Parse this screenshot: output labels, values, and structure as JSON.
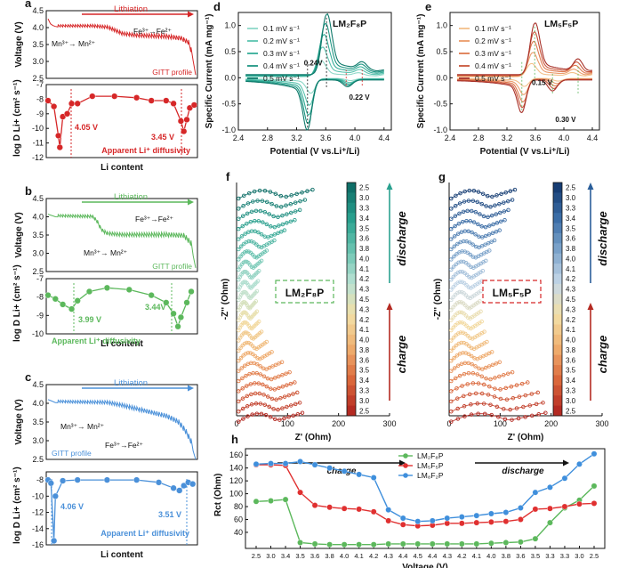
{
  "panels": {
    "a": {
      "letter": "a",
      "arrow_label": "Lithiation",
      "fe_label": "Fe³⁺→Fe²⁺",
      "mn_label": "Mn³⁺→ Mn²⁺",
      "profile_label": "GITT profile",
      "diff_label": "Apparent Li⁺ diffusivity",
      "v1": "4.05 V",
      "v2": "3.45 V",
      "xlabel": "Li content",
      "ylabel_v": "Voltage (V)",
      "ylabel_d": "log D",
      "ylabel_d_sub": "Li",
      "ylabel_d_sup": "+",
      "ylabel_d_unit": " (cm² s⁻¹)"
    },
    "b": {
      "letter": "b",
      "arrow_label": "Lithiation",
      "fe_label": "Fe³⁺→Fe²⁺",
      "mn_label": "Mn³⁺→ Mn²⁺",
      "profile_label": "GITT profile",
      "diff_label": "Apparent Li⁺ diffusivity",
      "v1": "3.99 V",
      "v2": "3.44V",
      "xlabel": "Li content",
      "ylabel_v": "Voltage (V)",
      "ylabel_d": "log D",
      "ylabel_d_sub": "Li",
      "ylabel_d_sup": "+",
      "ylabel_d_unit": " (cm² s⁻¹)"
    },
    "c": {
      "letter": "c",
      "arrow_label": "Lithiation",
      "fe_label": "Fe³⁺→Fe²⁺",
      "mn_label": "Mn³⁺→ Mn²⁺",
      "profile_label": "GITT profile",
      "diff_label": "Apparent Li⁺ diffusivity",
      "v1": "4.06 V",
      "v2": "3.51 V",
      "xlabel": "Li content",
      "ylabel_v": "Voltage (V)",
      "ylabel_d": "log D",
      "ylabel_d_sub": "Li",
      "ylabel_d_sup": "+",
      "ylabel_d_unit": " (cm² s⁻¹)"
    },
    "d": {
      "letter": "d",
      "title": "LM₂F₈P",
      "peak_sep_1": "0.24V",
      "peak_sep_2": "0.22 V",
      "xlabel": "Potential (V vs.Li⁺/Li)",
      "ylabel": "Specific Current (mA mg⁻¹)"
    },
    "e": {
      "letter": "e",
      "title": "LM₅F₅P",
      "peak_sep_1": "0.15 V",
      "peak_sep_2": "0.30 V",
      "xlabel": "Potential (V vs.Li⁺/Li)",
      "ylabel": "Specific Current (mA mg⁻¹)"
    },
    "f": {
      "letter": "f",
      "label": "LM₂F₈P",
      "xlabel": "Z' (Ohm)",
      "ylabel": "-Z'' (Ohm)",
      "discharge": "discharge",
      "charge": "charge"
    },
    "g": {
      "letter": "g",
      "label": "LM₅F₅P",
      "xlabel": "Z' (Ohm)",
      "ylabel": "-Z'' (Ohm)",
      "discharge": "discharge",
      "charge": "charge"
    },
    "h": {
      "letter": "h",
      "charge": "charge",
      "discharge": "discharge",
      "xlabel": "Voltage (V)",
      "ylabel": "R",
      "ylabel_sub": "ct",
      "ylabel_unit": " (Ohm)"
    }
  },
  "colors": {
    "red": "#d62728",
    "green": "#5cb85c",
    "blue": "#4a90d9",
    "teal": "#20a090",
    "orange": "#e07030"
  },
  "chart_data": [
    {
      "id": "a",
      "type": "line",
      "voltage_axis": {
        "ylim": [
          2.5,
          4.5
        ],
        "ticks": [
          4.5,
          4.0,
          3.5,
          3.0,
          2.5
        ]
      },
      "diffusivity_axis": {
        "ylim": [
          -12,
          -7
        ],
        "ticks": [
          -7,
          -8,
          -9,
          -10,
          -11,
          -12
        ]
      },
      "voltage_profile": [
        [
          0,
          4.26
        ],
        [
          0.02,
          4.08
        ],
        [
          0.06,
          4.02
        ],
        [
          0.3,
          4.01
        ],
        [
          0.4,
          3.97
        ],
        [
          0.45,
          3.88
        ],
        [
          0.5,
          3.78
        ],
        [
          0.56,
          3.74
        ],
        [
          0.6,
          3.72
        ],
        [
          0.8,
          3.68
        ],
        [
          0.9,
          3.62
        ],
        [
          0.95,
          3.5
        ],
        [
          0.98,
          3.1
        ],
        [
          1.0,
          2.6
        ]
      ],
      "diffusivity": [
        [
          0,
          -8.1
        ],
        [
          0.04,
          -8.5
        ],
        [
          0.07,
          -10.5
        ],
        [
          0.08,
          -11.3
        ],
        [
          0.1,
          -9.2
        ],
        [
          0.13,
          -9.0
        ],
        [
          0.16,
          -8.3
        ],
        [
          0.2,
          -8.3
        ],
        [
          0.3,
          -7.8
        ],
        [
          0.45,
          -7.8
        ],
        [
          0.6,
          -7.9
        ],
        [
          0.7,
          -8.1
        ],
        [
          0.8,
          -8.1
        ],
        [
          0.85,
          -8.3
        ],
        [
          0.9,
          -9.5
        ],
        [
          0.92,
          -10.2
        ],
        [
          0.94,
          -9.4
        ],
        [
          0.96,
          -8.6
        ],
        [
          0.99,
          -8.4
        ]
      ]
    },
    {
      "id": "b",
      "type": "line",
      "voltage_axis": {
        "ylim": [
          2.5,
          4.5
        ],
        "ticks": [
          4.5,
          4.0,
          3.5,
          3.0,
          2.5
        ]
      },
      "diffusivity_axis": {
        "ylim": [
          -10,
          -7
        ],
        "ticks": [
          -7,
          -8,
          -9,
          -10
        ]
      },
      "voltage_profile": [
        [
          0,
          4.07
        ],
        [
          0.05,
          4.0
        ],
        [
          0.2,
          3.98
        ],
        [
          0.3,
          3.97
        ],
        [
          0.33,
          3.85
        ],
        [
          0.36,
          3.6
        ],
        [
          0.4,
          3.5
        ],
        [
          0.5,
          3.46
        ],
        [
          0.8,
          3.45
        ],
        [
          0.92,
          3.42
        ],
        [
          0.97,
          3.2
        ],
        [
          1.0,
          2.6
        ]
      ],
      "diffusivity": [
        [
          0,
          -7.9
        ],
        [
          0.05,
          -8.1
        ],
        [
          0.1,
          -8.4
        ],
        [
          0.16,
          -8.65
        ],
        [
          0.2,
          -8.2
        ],
        [
          0.28,
          -7.7
        ],
        [
          0.4,
          -7.5
        ],
        [
          0.55,
          -7.6
        ],
        [
          0.7,
          -7.9
        ],
        [
          0.8,
          -8.3
        ],
        [
          0.85,
          -8.9
        ],
        [
          0.88,
          -9.6
        ],
        [
          0.9,
          -9.1
        ],
        [
          0.94,
          -8.3
        ],
        [
          0.97,
          -7.7
        ]
      ]
    },
    {
      "id": "c",
      "type": "line",
      "voltage_axis": {
        "ylim": [
          2.5,
          4.5
        ],
        "ticks": [
          4.5,
          4.0,
          3.5,
          3.0,
          2.5
        ]
      },
      "diffusivity_axis": {
        "ylim": [
          -16,
          -7
        ],
        "ticks": [
          -8,
          -10,
          -12,
          -14,
          -16
        ]
      },
      "voltage_profile": [
        [
          0,
          4.1
        ],
        [
          0.05,
          4.02
        ],
        [
          0.2,
          4.0
        ],
        [
          0.4,
          3.98
        ],
        [
          0.5,
          3.9
        ],
        [
          0.6,
          3.8
        ],
        [
          0.7,
          3.7
        ],
        [
          0.8,
          3.6
        ],
        [
          0.88,
          3.45
        ],
        [
          0.93,
          3.2
        ],
        [
          0.97,
          2.9
        ],
        [
          1.0,
          2.5
        ]
      ],
      "diffusivity": [
        [
          0,
          -8.0
        ],
        [
          0.02,
          -8.4
        ],
        [
          0.04,
          -15.5
        ],
        [
          0.05,
          -10.0
        ],
        [
          0.1,
          -8.1
        ],
        [
          0.2,
          -8.0
        ],
        [
          0.4,
          -8.0
        ],
        [
          0.6,
          -8.0
        ],
        [
          0.75,
          -8.3
        ],
        [
          0.85,
          -9.0
        ],
        [
          0.89,
          -9.3
        ],
        [
          0.92,
          -8.7
        ],
        [
          0.95,
          -8.3
        ],
        [
          0.98,
          -8.5
        ]
      ]
    },
    {
      "id": "d",
      "type": "line",
      "xlim": [
        2.4,
        4.5
      ],
      "ylim": [
        -1.0,
        1.25
      ],
      "x_ticks": [
        2.4,
        2.8,
        3.2,
        3.6,
        4.0,
        4.4
      ],
      "y_ticks": [
        -1.0,
        -0.5,
        0.0,
        0.5,
        1.0
      ],
      "series": [
        {
          "name": "0.1 mV s⁻¹",
          "color": "#8fd8c8",
          "ox_peak": [
            3.53,
            0.3
          ],
          "red_peak": [
            3.4,
            -0.28
          ],
          "ox_peak2": [
            4.05,
            0.05
          ],
          "red_peak2": [
            3.94,
            -0.04
          ]
        },
        {
          "name": "0.2 mV s⁻¹",
          "color": "#5cc4b0",
          "ox_peak": [
            3.55,
            0.55
          ],
          "red_peak": [
            3.38,
            -0.5
          ],
          "ox_peak2": [
            4.07,
            0.08
          ],
          "red_peak2": [
            3.93,
            -0.07
          ]
        },
        {
          "name": "0.3 mV s⁻¹",
          "color": "#35ad98",
          "ox_peak": [
            3.57,
            0.78
          ],
          "red_peak": [
            3.37,
            -0.68
          ],
          "ox_peak2": [
            4.08,
            0.1
          ],
          "red_peak2": [
            3.92,
            -0.09
          ]
        },
        {
          "name": "0.4 mV s⁻¹",
          "color": "#1f9683",
          "ox_peak": [
            3.59,
            0.98
          ],
          "red_peak": [
            3.36,
            -0.83
          ],
          "ox_peak2": [
            4.09,
            0.12
          ],
          "red_peak2": [
            3.91,
            -0.11
          ]
        },
        {
          "name": "0.5 mV s⁻¹",
          "color": "#0f7a6b",
          "ox_peak": [
            3.61,
            1.15
          ],
          "red_peak": [
            3.35,
            -0.95
          ],
          "ox_peak2": [
            4.1,
            0.14
          ],
          "red_peak2": [
            3.9,
            -0.13
          ]
        }
      ]
    },
    {
      "id": "e",
      "type": "line",
      "xlim": [
        2.4,
        4.5
      ],
      "ylim": [
        -1.0,
        1.25
      ],
      "x_ticks": [
        2.4,
        2.8,
        3.2,
        3.6,
        4.0,
        4.4
      ],
      "y_ticks": [
        -1.0,
        -0.5,
        0.0,
        0.5,
        1.0
      ],
      "series": [
        {
          "name": "0.1 mV s⁻¹",
          "color": "#f3c08a",
          "ox_peak": [
            3.54,
            0.25
          ],
          "red_peak": [
            3.45,
            -0.15
          ],
          "ox_peak2": [
            4.12,
            0.06
          ],
          "red_peak2": [
            3.92,
            -0.05
          ]
        },
        {
          "name": "0.2 mV s⁻¹",
          "color": "#eb9b6a",
          "ox_peak": [
            3.56,
            0.45
          ],
          "red_peak": [
            3.44,
            -0.3
          ],
          "ox_peak2": [
            4.14,
            0.1
          ],
          "red_peak2": [
            3.9,
            -0.09
          ]
        },
        {
          "name": "0.3 mV s⁻¹",
          "color": "#de7a4f",
          "ox_peak": [
            3.57,
            0.65
          ],
          "red_peak": [
            3.43,
            -0.43
          ],
          "ox_peak2": [
            4.16,
            0.15
          ],
          "red_peak2": [
            3.88,
            -0.13
          ]
        },
        {
          "name": "0.4 mV s⁻¹",
          "color": "#c9553a",
          "ox_peak": [
            3.58,
            0.82
          ],
          "red_peak": [
            3.42,
            -0.53
          ],
          "ox_peak2": [
            4.18,
            0.19
          ],
          "red_peak2": [
            3.86,
            -0.17
          ]
        },
        {
          "name": "0.5 mV s⁻¹",
          "color": "#a8322a",
          "ox_peak": [
            3.59,
            0.98
          ],
          "red_peak": [
            3.41,
            -0.62
          ],
          "ox_peak2": [
            4.2,
            0.23
          ],
          "red_peak2": [
            3.84,
            -0.21
          ]
        }
      ]
    },
    {
      "id": "f",
      "type": "scatter",
      "x_ticks": [
        0,
        100,
        200,
        300
      ],
      "colorbar_labels": [
        "2.5",
        "3.0",
        "3.3",
        "3.4",
        "3.5",
        "3.6",
        "3.8",
        "4.0",
        "4.1",
        "4.2",
        "4.3",
        "4.5",
        "4.3",
        "4.2",
        "4.1",
        "4.0",
        "3.8",
        "3.6",
        "3.5",
        "3.4",
        "3.3",
        "3.0",
        "2.5"
      ],
      "curve_extent_ohm": [
        145,
        130,
        120,
        110,
        90,
        70,
        55,
        45,
        40,
        38,
        36,
        34,
        36,
        40,
        45,
        55,
        65,
        85,
        100,
        110,
        115,
        120,
        125
      ]
    },
    {
      "id": "g",
      "type": "scatter",
      "x_ticks": [
        0,
        100,
        200,
        300
      ],
      "colorbar_labels": [
        "2.5",
        "3.0",
        "3.3",
        "3.4",
        "3.5",
        "3.6",
        "3.8",
        "4.0",
        "4.1",
        "4.2",
        "4.3",
        "4.5",
        "4.3",
        "4.2",
        "4.1",
        "4.0",
        "3.8",
        "3.6",
        "3.5",
        "3.4",
        "3.3",
        "3.0",
        "2.5"
      ],
      "curve_extent_ohm": [
        125,
        120,
        112,
        105,
        95,
        85,
        75,
        68,
        62,
        60,
        58,
        56,
        58,
        60,
        65,
        70,
        80,
        95,
        120,
        150,
        170,
        180,
        185
      ]
    },
    {
      "id": "h",
      "type": "line",
      "categories": [
        "2.5",
        "3.0",
        "3.4",
        "3.5",
        "3.6",
        "3.8",
        "4.0",
        "4.1",
        "4.2",
        "4.3",
        "4.4",
        "4.5",
        "4.4",
        "4.3",
        "4.2",
        "4.1",
        "4.0",
        "3.8",
        "3.6",
        "3.5",
        "3.3",
        "3.3",
        "3.0",
        "2.5"
      ],
      "y_ticks": [
        40,
        60,
        80,
        100,
        120,
        140,
        160
      ],
      "ylim": [
        15,
        170
      ],
      "series": [
        {
          "name": "LM₂F₈P",
          "color": "#5cb85c",
          "values": [
            88,
            89,
            91,
            24,
            22,
            21,
            21,
            21,
            21,
            22,
            22,
            22,
            22,
            22,
            22,
            22,
            23,
            24,
            25,
            30,
            55,
            78,
            90,
            112
          ]
        },
        {
          "name": "LM₅F₅P",
          "color": "#e03030",
          "values": [
            145,
            145,
            144,
            102,
            82,
            79,
            77,
            76,
            72,
            58,
            52,
            50,
            51,
            54,
            54,
            55,
            56,
            57,
            60,
            76,
            77,
            80,
            84,
            85
          ]
        },
        {
          "name": "LM₈F₂P",
          "color": "#3f8fdc",
          "values": [
            146,
            147,
            147,
            150,
            145,
            140,
            135,
            130,
            125,
            75,
            62,
            57,
            58,
            62,
            64,
            66,
            69,
            71,
            78,
            102,
            110,
            124,
            146,
            162
          ]
        }
      ]
    }
  ]
}
